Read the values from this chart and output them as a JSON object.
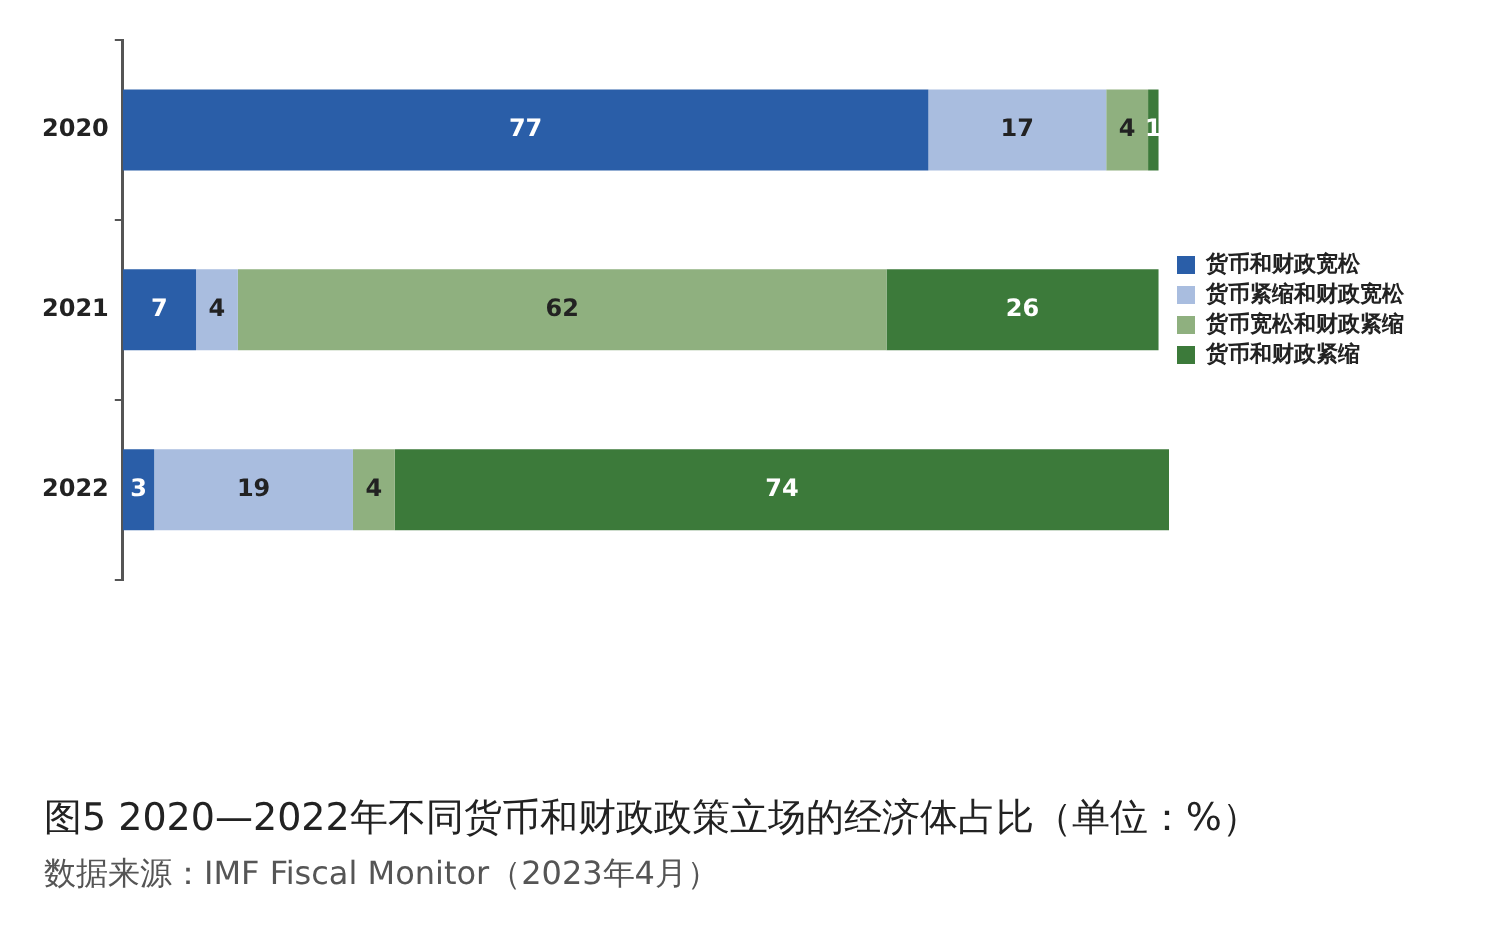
{
  "chart_data": {
    "type": "bar",
    "orientation": "horizontal",
    "stacked": true,
    "data_labels": true,
    "legend": "right",
    "title": "图5  2020—2022年不同货币和财政政策立场的经济体占比（单位：%）",
    "annotations": [
      "数据来源：IMF Fiscal Monitor（2023年4月）"
    ],
    "categories": [
      "2020",
      "2021",
      "2022"
    ],
    "series": [
      {
        "name": "货币和财政宽松",
        "color": "#2a5ea8",
        "values": [
          77,
          7,
          3
        ]
      },
      {
        "name": "货币紧缩和财政宽松",
        "color": "#a9bddf",
        "values": [
          17,
          4,
          19
        ]
      },
      {
        "name": "货币宽松和财政紧缩",
        "color": "#8fb07f",
        "values": [
          4,
          62,
          4
        ]
      },
      {
        "name": "货币和财政紧缩",
        "color": "#3c7a3a",
        "values": [
          1,
          26,
          74
        ]
      }
    ]
  }
}
